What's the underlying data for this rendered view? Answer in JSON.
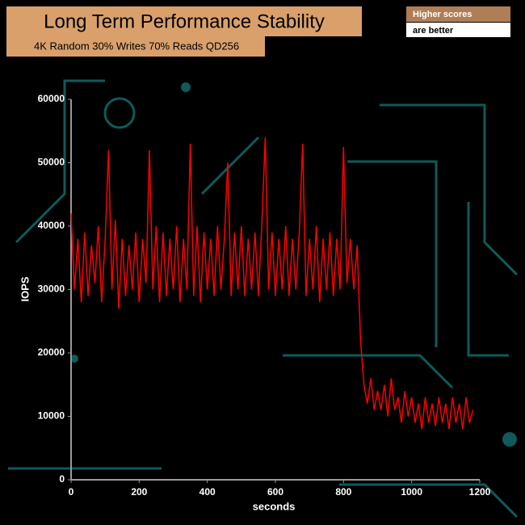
{
  "chart_data": {
    "type": "line",
    "title": "Long Term Performance Stability",
    "subtitle": "4K Random 30% Writes 70% Reads QD256",
    "annotations": [
      "Higher scores",
      "are better"
    ],
    "x_label": "seconds",
    "y_label": "IOPS",
    "color": "#ff0000",
    "x": [
      0,
      10,
      20,
      30,
      40,
      50,
      60,
      70,
      80,
      90,
      100,
      110,
      120,
      130,
      140,
      150,
      160,
      170,
      180,
      190,
      200,
      210,
      220,
      230,
      240,
      250,
      260,
      270,
      280,
      290,
      300,
      310,
      320,
      330,
      340,
      350,
      360,
      370,
      380,
      390,
      400,
      410,
      420,
      430,
      440,
      450,
      460,
      470,
      480,
      490,
      500,
      510,
      520,
      530,
      540,
      550,
      560,
      570,
      580,
      590,
      600,
      610,
      620,
      630,
      640,
      650,
      660,
      670,
      680,
      690,
      700,
      710,
      720,
      730,
      740,
      750,
      760,
      770,
      780,
      790,
      800,
      810,
      820,
      830,
      840,
      850,
      860,
      870,
      880,
      890,
      900,
      910,
      920,
      930,
      940,
      950,
      960,
      970,
      980,
      990,
      1000,
      1010,
      1020,
      1030,
      1040,
      1050,
      1060,
      1070,
      1080,
      1090,
      1100,
      1110,
      1120,
      1130,
      1140,
      1150,
      1160,
      1170,
      1180
    ],
    "values": [
      42000,
      30000,
      38000,
      28000,
      39000,
      29000,
      37000,
      31000,
      40000,
      28000,
      38000,
      52000,
      30000,
      41000,
      27000,
      38000,
      29000,
      37000,
      30000,
      39000,
      28000,
      38000,
      31000,
      52000,
      30000,
      40000,
      28000,
      39000,
      29000,
      38000,
      30000,
      40000,
      28000,
      38000,
      30000,
      53000,
      29000,
      40000,
      28000,
      39000,
      30000,
      38000,
      29000,
      40000,
      30000,
      38000,
      50000,
      29000,
      39000,
      30000,
      40000,
      29000,
      38000,
      30000,
      39000,
      29000,
      40000,
      54000,
      30000,
      39000,
      29000,
      38000,
      30000,
      40000,
      29000,
      38000,
      30000,
      39000,
      53000,
      29000,
      38000,
      30000,
      40000,
      28000,
      38000,
      30000,
      39000,
      29000,
      38000,
      30000,
      52500,
      31000,
      38000,
      30000,
      37000,
      22000,
      15000,
      12000,
      16000,
      11000,
      14000,
      11000,
      15000,
      10000,
      16000,
      11000,
      13000,
      9000,
      14000,
      10000,
      13000,
      9000,
      12000,
      8000,
      13000,
      9000,
      12000,
      8500,
      13000,
      9000,
      12000,
      8000,
      13000,
      9000,
      12000,
      8000,
      13000,
      9000,
      11000
    ],
    "xlim": [
      0,
      1200
    ],
    "xticks": [
      0,
      200,
      400,
      600,
      800,
      1000,
      1200
    ],
    "ylim": [
      0,
      60000
    ],
    "yticks": [
      0,
      10000,
      20000,
      30000,
      40000,
      50000,
      60000
    ]
  }
}
